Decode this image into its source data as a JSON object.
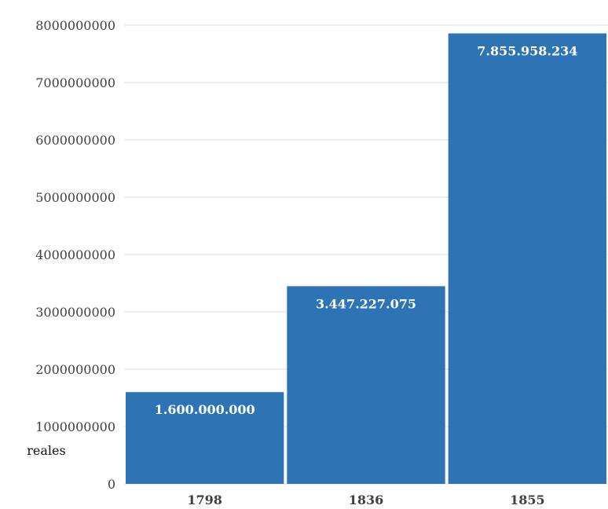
{
  "chart_data": {
    "type": "bar",
    "categories": [
      "1798",
      "1836",
      "1855"
    ],
    "values": [
      1600000000,
      3447227075,
      7855958234
    ],
    "data_labels": [
      "1.600.000.000",
      "3.447.227.075",
      "7.855.958.234"
    ],
    "y_ticks": [
      "0",
      "1000000000",
      "2000000000",
      "3000000000",
      "4000000000",
      "5000000000",
      "6000000000",
      "7000000000",
      "8000000000"
    ],
    "ylim": [
      0,
      8000000000
    ],
    "unit_label": "reales",
    "grid": true,
    "bar_color": "#2e74b5"
  }
}
